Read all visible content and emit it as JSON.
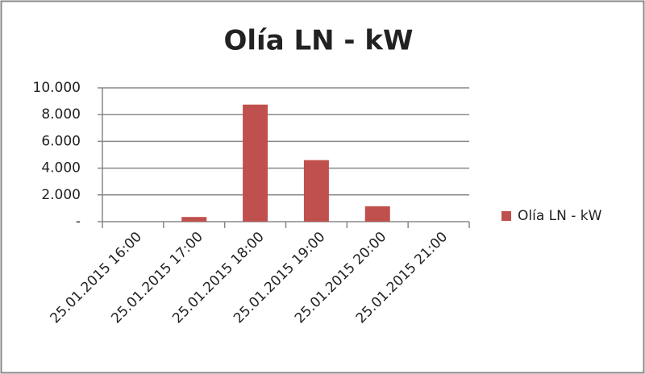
{
  "chart_data": {
    "type": "bar",
    "title": "Olía LN - kW",
    "categories": [
      "25.01.2015 16:00",
      "25.01.2015 17:00",
      "25.01.2015 18:00",
      "25.01.2015 19:00",
      "25.01.2015 20:00",
      "25.01.2015 21:00"
    ],
    "series": [
      {
        "name": "Olía LN - kW",
        "color": "#c0504d",
        "values": [
          0,
          350,
          8750,
          4600,
          1150,
          0
        ]
      }
    ],
    "ylim": [
      0,
      10000
    ],
    "yticks": [
      {
        "value": 0,
        "label": "-"
      },
      {
        "value": 2000,
        "label": "2.000"
      },
      {
        "value": 4000,
        "label": "4.000"
      },
      {
        "value": 6000,
        "label": "6.000"
      },
      {
        "value": 8000,
        "label": "8.000"
      },
      {
        "value": 10000,
        "label": "10.000"
      }
    ],
    "grid": true,
    "legend": "right"
  }
}
